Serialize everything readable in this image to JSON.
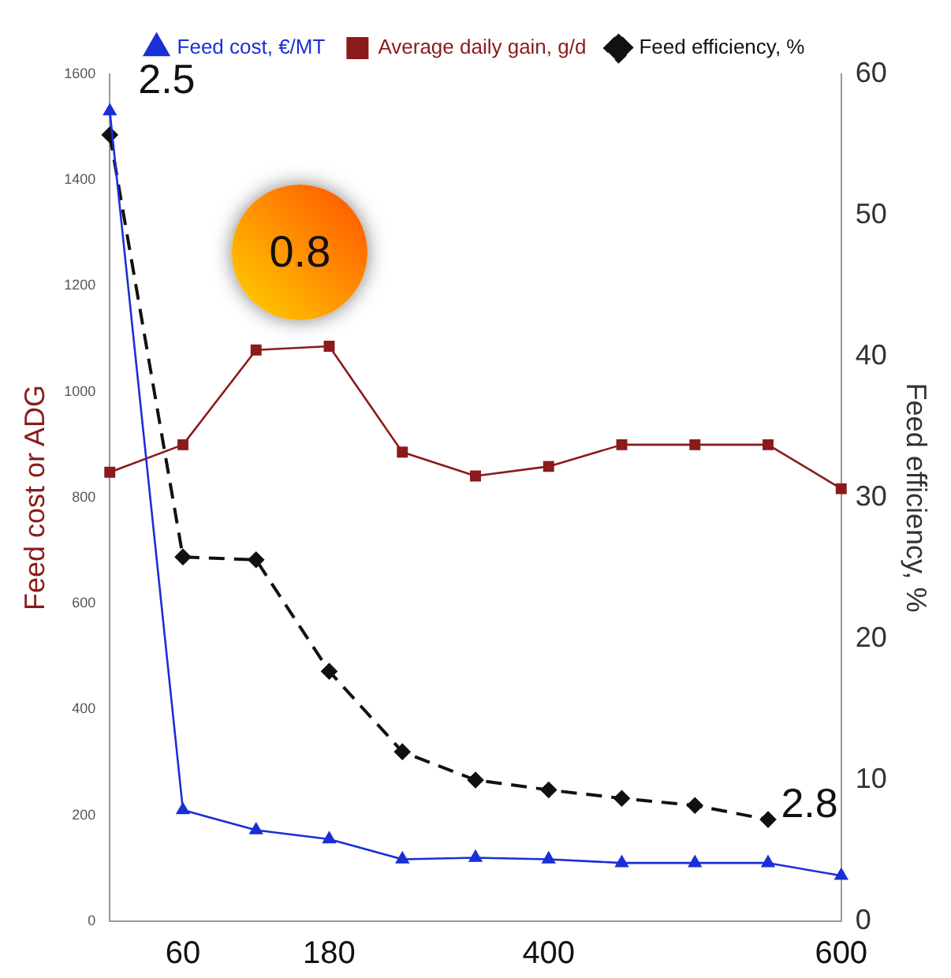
{
  "chart_data": {
    "type": "line",
    "categories": [
      null,
      "60",
      null,
      "180",
      null,
      null,
      "400",
      null,
      null,
      null,
      "600"
    ],
    "ylabel": "Feed cost or ADG",
    "y2label": "Feed efficiency, %",
    "ylim": [
      0,
      1600
    ],
    "yticks": [
      0,
      200,
      400,
      600,
      800,
      1000,
      1200,
      1400,
      1600
    ],
    "y2lim": [
      0,
      60
    ],
    "y2ticks": [
      0,
      10,
      20,
      30,
      40,
      50,
      60
    ],
    "legend": "top",
    "grid": false,
    "annotations": [
      "2.5",
      "0.8",
      "2.8"
    ],
    "series": [
      {
        "name": "Feed cost, €/MT",
        "color": "#1a2fd6",
        "marker": "triangle",
        "line_style": "solid",
        "values": [
          1530,
          210,
          172,
          155,
          117,
          120,
          117,
          110,
          110,
          110,
          86
        ]
      },
      {
        "name": "Average daily gain, g/d",
        "color": "#8b1a1a",
        "marker": "square",
        "line_style": "solid",
        "values": [
          848,
          900,
          1079,
          1086,
          886,
          841,
          859,
          900,
          900,
          900,
          817
        ]
      },
      {
        "name": "Feed efficiency, %",
        "color": "#111111",
        "marker": "diamond",
        "line_style": "dashed",
        "axis": "y2",
        "values": [
          55.7,
          25.8,
          25.6,
          17.7,
          12.0,
          10.0,
          9.3,
          8.7,
          8.2,
          7.2,
          null
        ]
      }
    ]
  }
}
